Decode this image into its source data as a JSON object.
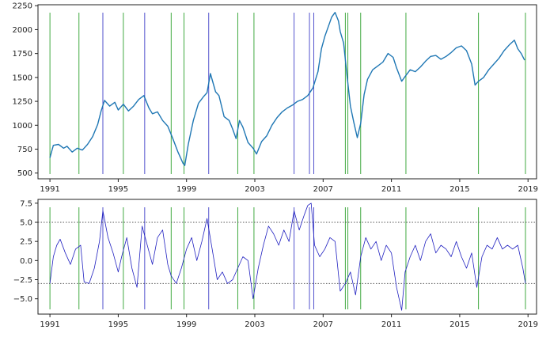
{
  "chart_data": [
    {
      "type": "line",
      "title": "",
      "xlabel": "",
      "ylabel": "",
      "xlim": [
        1990.3,
        2019.5
      ],
      "ylim": [
        440,
        2260
      ],
      "x_ticks": [
        1991,
        1995,
        1999,
        2003,
        2007,
        2011,
        2015,
        2019
      ],
      "x_tick_labels": [
        "1991",
        "1995",
        "1999",
        "2003",
        "2007",
        "2011",
        "2015",
        "2019"
      ],
      "y_ticks": [
        500,
        750,
        1000,
        1250,
        1500,
        1750,
        2000,
        2250
      ],
      "y_tick_labels": [
        "500",
        "750",
        "1000",
        "1250",
        "1500",
        "1750",
        "2000",
        "2250"
      ],
      "grid": false,
      "series": [
        {
          "color": "#1f77b4",
          "x": [
            1991.0,
            1991.2,
            1991.5,
            1991.8,
            1992.0,
            1992.3,
            1992.6,
            1992.9,
            1993.2,
            1993.5,
            1993.8,
            1994.0,
            1994.2,
            1994.5,
            1994.8,
            1995.0,
            1995.3,
            1995.6,
            1995.9,
            1996.2,
            1996.5,
            1996.8,
            1997.0,
            1997.3,
            1997.6,
            1997.9,
            1998.2,
            1998.5,
            1998.8,
            1998.9,
            1999.1,
            1999.4,
            1999.7,
            2000.0,
            2000.2,
            2000.4,
            2000.7,
            2000.9,
            2001.2,
            2001.5,
            2001.7,
            2001.9,
            2002.1,
            2002.3,
            2002.6,
            2002.9,
            2003.1,
            2003.4,
            2003.7,
            2004.0,
            2004.3,
            2004.6,
            2004.9,
            2005.2,
            2005.5,
            2005.8,
            2006.1,
            2006.4,
            2006.7,
            2006.9,
            2007.1,
            2007.3,
            2007.5,
            2007.7,
            2007.9,
            2008.0,
            2008.2,
            2008.4,
            2008.6,
            2008.8,
            2009.0,
            2009.2,
            2009.4,
            2009.6,
            2009.9,
            2010.2,
            2010.5,
            2010.8,
            2011.1,
            2011.3,
            2011.6,
            2011.8,
            2012.1,
            2012.4,
            2012.7,
            2013.0,
            2013.3,
            2013.6,
            2013.9,
            2014.2,
            2014.5,
            2014.8,
            2015.1,
            2015.4,
            2015.7,
            2015.9,
            2016.1,
            2016.4,
            2016.7,
            2017.0,
            2017.3,
            2017.6,
            2017.9,
            2018.2,
            2018.4,
            2018.6,
            2018.8
          ],
          "y": [
            660,
            790,
            800,
            760,
            780,
            720,
            760,
            740,
            800,
            880,
            1010,
            1150,
            1260,
            1200,
            1240,
            1160,
            1220,
            1150,
            1200,
            1270,
            1310,
            1180,
            1120,
            1140,
            1050,
            990,
            860,
            720,
            600,
            580,
            800,
            1050,
            1230,
            1300,
            1340,
            1540,
            1350,
            1310,
            1090,
            1050,
            960,
            860,
            1050,
            980,
            820,
            760,
            700,
            830,
            890,
            1000,
            1080,
            1140,
            1180,
            1210,
            1250,
            1270,
            1310,
            1390,
            1560,
            1800,
            1930,
            2030,
            2130,
            2180,
            2090,
            1980,
            1860,
            1520,
            1200,
            1030,
            870,
            1020,
            1320,
            1480,
            1580,
            1620,
            1660,
            1750,
            1710,
            1600,
            1460,
            1510,
            1580,
            1560,
            1610,
            1670,
            1720,
            1730,
            1690,
            1720,
            1760,
            1810,
            1830,
            1780,
            1640,
            1420,
            1460,
            1500,
            1580,
            1640,
            1700,
            1780,
            1840,
            1890,
            1800,
            1750,
            1680
          ]
        }
      ],
      "vertical_lines": [
        {
          "x": 1991.0,
          "color": "#2ca02c"
        },
        {
          "x": 1992.7,
          "color": "#2ca02c"
        },
        {
          "x": 1994.1,
          "color": "#4040c8"
        },
        {
          "x": 1995.3,
          "color": "#2ca02c"
        },
        {
          "x": 1996.55,
          "color": "#4040c8"
        },
        {
          "x": 1998.1,
          "color": "#2ca02c"
        },
        {
          "x": 1998.85,
          "color": "#2ca02c"
        },
        {
          "x": 2000.3,
          "color": "#4040c8"
        },
        {
          "x": 2002.0,
          "color": "#2ca02c"
        },
        {
          "x": 2002.95,
          "color": "#2ca02c"
        },
        {
          "x": 2005.3,
          "color": "#4040c8"
        },
        {
          "x": 2006.2,
          "color": "#4040c8"
        },
        {
          "x": 2006.45,
          "color": "#4040c8"
        },
        {
          "x": 2008.3,
          "color": "#2ca02c"
        },
        {
          "x": 2008.45,
          "color": "#2ca02c"
        },
        {
          "x": 2009.2,
          "color": "#2ca02c"
        },
        {
          "x": 2011.85,
          "color": "#2ca02c"
        },
        {
          "x": 2016.1,
          "color": "#2ca02c"
        },
        {
          "x": 2018.85,
          "color": "#2ca02c"
        }
      ]
    },
    {
      "type": "line",
      "title": "",
      "xlabel": "",
      "ylabel": "",
      "xlim": [
        1990.3,
        2019.5
      ],
      "ylim": [
        -7.0,
        8.0
      ],
      "x_ticks": [
        1991,
        1995,
        1999,
        2003,
        2007,
        2011,
        2015,
        2019
      ],
      "x_tick_labels": [
        "1991",
        "1995",
        "1999",
        "2003",
        "2007",
        "2011",
        "2015",
        "2019"
      ],
      "y_ticks": [
        -5.0,
        -2.5,
        0.0,
        2.5,
        5.0,
        7.5
      ],
      "y_tick_labels": [
        "−5.0",
        "−2.5",
        "0.0",
        "2.5",
        "5.0",
        "7.5"
      ],
      "grid": false,
      "horizontal_lines": [
        {
          "y": 5.0,
          "style": "dotted",
          "color": "#555555"
        },
        {
          "y": -3.0,
          "style": "dotted",
          "color": "#555555"
        }
      ],
      "series": [
        {
          "color": "#2020c0",
          "x": [
            1991.0,
            1991.2,
            1991.4,
            1991.6,
            1991.9,
            1992.2,
            1992.5,
            1992.8,
            1993.0,
            1993.3,
            1993.6,
            1993.9,
            1994.1,
            1994.4,
            1994.7,
            1995.0,
            1995.2,
            1995.5,
            1995.8,
            1996.1,
            1996.4,
            1996.7,
            1997.0,
            1997.3,
            1997.6,
            1997.9,
            1998.1,
            1998.4,
            1998.7,
            1999.0,
            1999.3,
            1999.6,
            1999.9,
            2000.2,
            2000.5,
            2000.8,
            2001.1,
            2001.4,
            2001.7,
            2002.0,
            2002.3,
            2002.6,
            2002.9,
            2003.2,
            2003.5,
            2003.8,
            2004.1,
            2004.4,
            2004.7,
            2005.0,
            2005.3,
            2005.6,
            2005.9,
            2006.1,
            2006.3,
            2006.5,
            2006.8,
            2007.1,
            2007.4,
            2007.7,
            2008.0,
            2008.3,
            2008.6,
            2008.9,
            2009.2,
            2009.5,
            2009.8,
            2010.1,
            2010.4,
            2010.7,
            2011.0,
            2011.3,
            2011.6,
            2011.8,
            2012.1,
            2012.4,
            2012.7,
            2013.0,
            2013.3,
            2013.6,
            2013.9,
            2014.2,
            2014.5,
            2014.8,
            2015.1,
            2015.4,
            2015.7,
            2016.0,
            2016.3,
            2016.6,
            2016.9,
            2017.2,
            2017.5,
            2017.8,
            2018.1,
            2018.4,
            2018.7,
            2018.85
          ],
          "y": [
            -3.0,
            0.5,
            2.0,
            2.8,
            1.0,
            -0.5,
            1.5,
            2.0,
            -2.8,
            -3.0,
            -1.0,
            2.5,
            6.5,
            3.0,
            1.0,
            -1.5,
            0.5,
            3.0,
            -1.0,
            -3.5,
            4.5,
            2.0,
            -0.5,
            3.0,
            4.0,
            -0.5,
            -2.0,
            -3.0,
            -1.0,
            1.5,
            3.0,
            0.0,
            2.5,
            5.5,
            1.5,
            -2.5,
            -1.5,
            -3.0,
            -2.5,
            -1.0,
            0.5,
            0.0,
            -5.0,
            -1.0,
            2.0,
            4.5,
            3.5,
            2.0,
            4.0,
            2.5,
            6.5,
            4.0,
            6.0,
            7.2,
            7.5,
            2.0,
            0.5,
            1.5,
            3.0,
            2.5,
            -4.0,
            -3.0,
            -1.5,
            -4.5,
            0.5,
            3.0,
            1.5,
            2.5,
            0.0,
            2.0,
            1.0,
            -3.5,
            -6.5,
            -1.5,
            0.5,
            2.0,
            0.0,
            2.5,
            3.5,
            1.0,
            2.0,
            1.5,
            0.5,
            2.5,
            0.5,
            -1.0,
            1.0,
            -3.5,
            0.5,
            2.0,
            1.5,
            3.0,
            1.5,
            2.0,
            1.5,
            2.0,
            -1.0,
            -3.0
          ]
        }
      ],
      "vertical_lines": [
        {
          "x": 1991.0,
          "color": "#2ca02c"
        },
        {
          "x": 1992.7,
          "color": "#2ca02c"
        },
        {
          "x": 1994.1,
          "color": "#4040c8"
        },
        {
          "x": 1995.3,
          "color": "#2ca02c"
        },
        {
          "x": 1996.55,
          "color": "#4040c8"
        },
        {
          "x": 1998.1,
          "color": "#2ca02c"
        },
        {
          "x": 1998.85,
          "color": "#2ca02c"
        },
        {
          "x": 2000.3,
          "color": "#4040c8"
        },
        {
          "x": 2002.0,
          "color": "#2ca02c"
        },
        {
          "x": 2002.95,
          "color": "#2ca02c"
        },
        {
          "x": 2005.3,
          "color": "#4040c8"
        },
        {
          "x": 2006.2,
          "color": "#4040c8"
        },
        {
          "x": 2006.45,
          "color": "#4040c8"
        },
        {
          "x": 2008.3,
          "color": "#2ca02c"
        },
        {
          "x": 2008.45,
          "color": "#2ca02c"
        },
        {
          "x": 2009.2,
          "color": "#2ca02c"
        },
        {
          "x": 2011.85,
          "color": "#2ca02c"
        },
        {
          "x": 2016.1,
          "color": "#2ca02c"
        },
        {
          "x": 2018.85,
          "color": "#2ca02c"
        }
      ]
    }
  ]
}
